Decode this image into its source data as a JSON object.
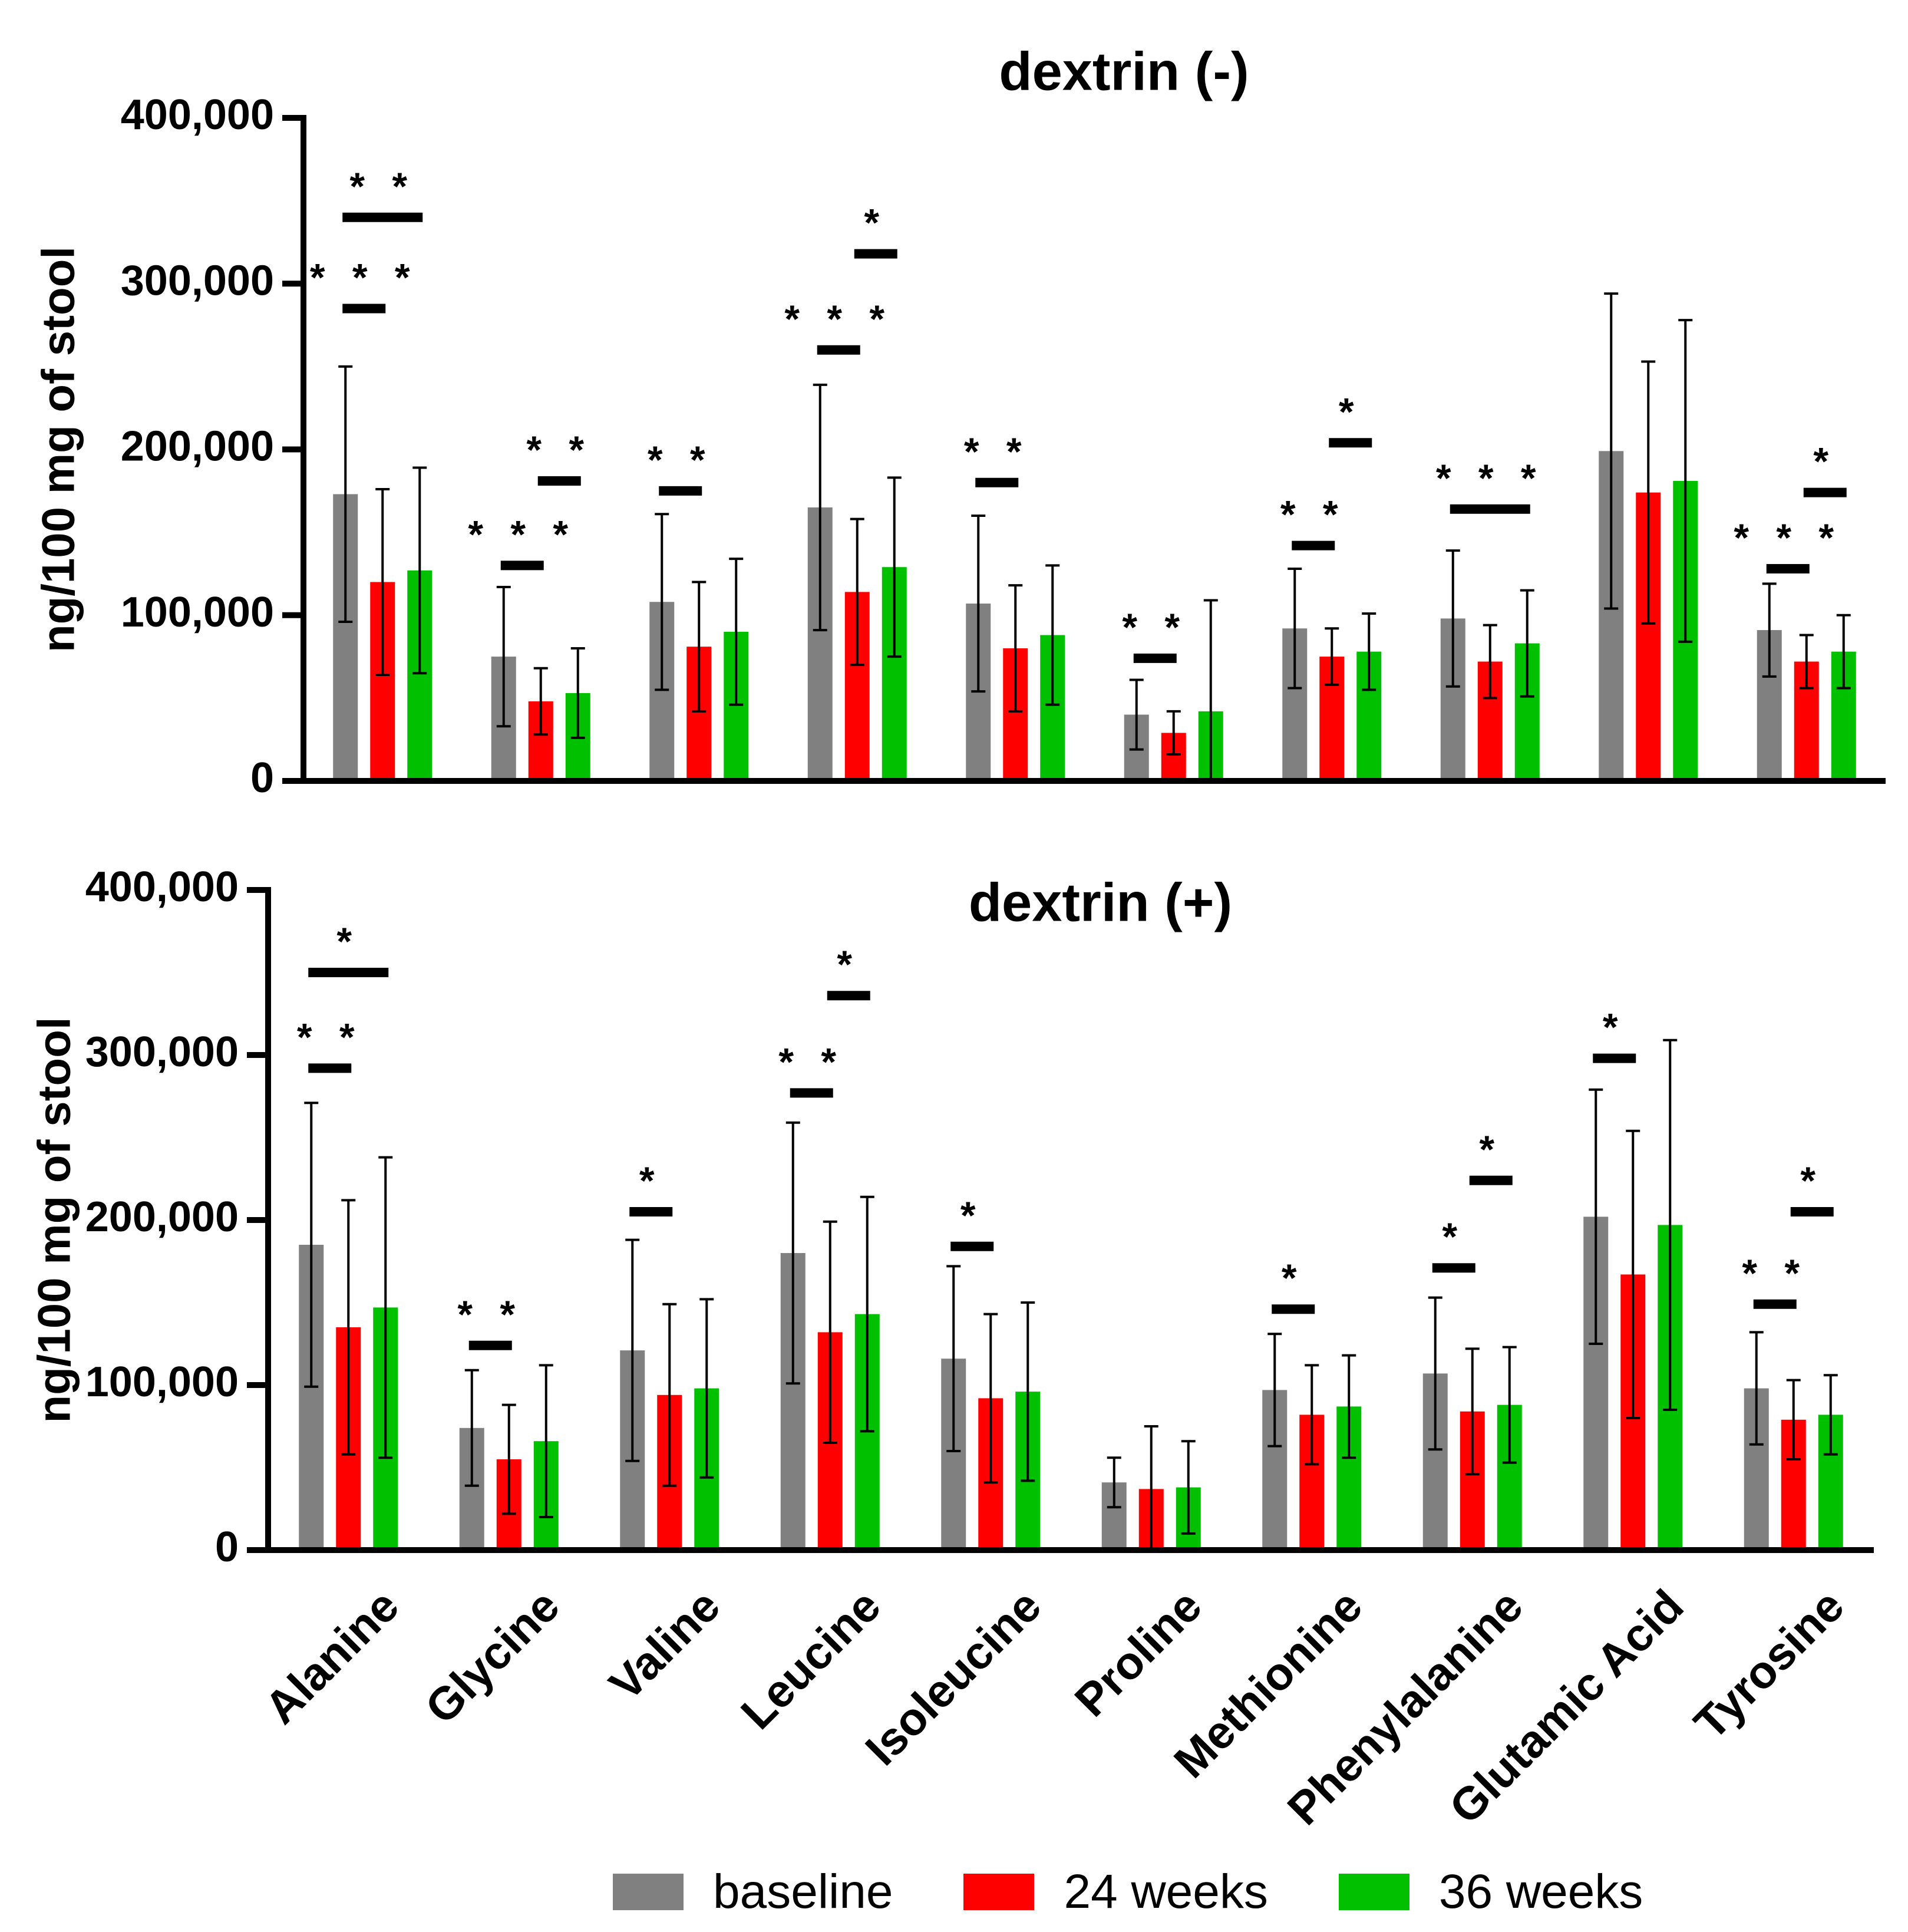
{
  "colors": {
    "baseline": "#808080",
    "week24": "#ff0000",
    "week36": "#00c000",
    "axis": "#000000"
  },
  "legend": {
    "baseline": "baseline",
    "week24": "24 weeks",
    "week36": "36 weeks"
  },
  "chart_data": [
    {
      "type": "bar",
      "title": "dextrin (-)",
      "ylabel": "ng/100 mg of stool",
      "xlabel": "",
      "ylim": [
        0,
        400000
      ],
      "yticks": [
        "0",
        "100,000",
        "200,000",
        "300,000",
        "400,000"
      ],
      "ytick_values": [
        0,
        100000,
        200000,
        300000,
        400000
      ],
      "categories": [
        "Alanine",
        "Glycine",
        "Valine",
        "Leucine",
        "Isoleucine",
        "Proline",
        "Methionine",
        "Phenylalanine",
        "Glutamic Acid",
        "Tyrosine"
      ],
      "series": [
        {
          "name": "baseline",
          "values": [
            173000,
            75000,
            108000,
            165000,
            107000,
            40000,
            92000,
            98000,
            199000,
            91000
          ],
          "errors": [
            77000,
            42000,
            53000,
            74000,
            53000,
            21000,
            36000,
            41000,
            95000,
            28000
          ]
        },
        {
          "name": "24 weeks",
          "values": [
            120000,
            48000,
            81000,
            114000,
            80000,
            29000,
            75000,
            72000,
            174000,
            72000
          ],
          "errors": [
            56000,
            20000,
            39000,
            44000,
            38000,
            13000,
            17000,
            22000,
            79000,
            16000
          ]
        },
        {
          "name": "36 weeks",
          "values": [
            127000,
            53000,
            90000,
            129000,
            88000,
            42000,
            78000,
            83000,
            181000,
            78000
          ],
          "errors": [
            62000,
            27000,
            44000,
            54000,
            42000,
            67000,
            23000,
            32000,
            97000,
            22000
          ]
        }
      ],
      "significance": [
        {
          "category": 0,
          "from": 0,
          "to": 1,
          "label": "* * *",
          "y": 285000
        },
        {
          "category": 0,
          "from": 0,
          "to": 2,
          "label": "* *",
          "y": 340000
        },
        {
          "category": 1,
          "from": 0,
          "to": 1,
          "label": "* * *",
          "y": 130000
        },
        {
          "category": 1,
          "from": 1,
          "to": 2,
          "label": "* *",
          "y": 181000
        },
        {
          "category": 2,
          "from": 0,
          "to": 1,
          "label": "* *",
          "y": 175000
        },
        {
          "category": 3,
          "from": 0,
          "to": 1,
          "label": "* * *",
          "y": 260000
        },
        {
          "category": 3,
          "from": 1,
          "to": 2,
          "label": "*",
          "y": 318000
        },
        {
          "category": 4,
          "from": 0,
          "to": 1,
          "label": "* *",
          "y": 180000
        },
        {
          "category": 5,
          "from": 0,
          "to": 1,
          "label": "* *",
          "y": 74000
        },
        {
          "category": 6,
          "from": 0,
          "to": 1,
          "label": "* *",
          "y": 142000
        },
        {
          "category": 6,
          "from": 1,
          "to": 2,
          "label": "*",
          "y": 204000
        },
        {
          "category": 7,
          "from": 0,
          "to": 2,
          "label": "* * *",
          "y": 164000
        },
        {
          "category": 9,
          "from": 0,
          "to": 1,
          "label": "* * *",
          "y": 128000
        },
        {
          "category": 9,
          "from": 1,
          "to": 2,
          "label": "*",
          "y": 174000
        }
      ]
    },
    {
      "type": "bar",
      "title": "dextrin (+)",
      "ylabel": "ng/100 mg of stool",
      "xlabel": "",
      "ylim": [
        0,
        400000
      ],
      "yticks": [
        "0",
        "100,000",
        "200,000",
        "300,000",
        "400,000"
      ],
      "ytick_values": [
        0,
        100000,
        200000,
        300000,
        400000
      ],
      "categories": [
        "Alanine",
        "Glycine",
        "Valine",
        "Leucine",
        "Isoleucine",
        "Proline",
        "Methionine",
        "Phenylalanine",
        "Glutamic Acid",
        "Tyrosine"
      ],
      "series": [
        {
          "name": "baseline",
          "values": [
            185000,
            74000,
            121000,
            180000,
            116000,
            41000,
            97000,
            107000,
            202000,
            98000
          ],
          "errors": [
            86000,
            35000,
            67000,
            79000,
            56000,
            15000,
            34000,
            46000,
            77000,
            34000
          ]
        },
        {
          "name": "24 weeks",
          "values": [
            135000,
            55000,
            94000,
            132000,
            92000,
            37000,
            82000,
            84000,
            167000,
            79000
          ],
          "errors": [
            77000,
            33000,
            55000,
            67000,
            51000,
            38000,
            30000,
            38000,
            87000,
            24000
          ]
        },
        {
          "name": "36 weeks",
          "values": [
            147000,
            66000,
            98000,
            143000,
            96000,
            38000,
            87000,
            88000,
            197000,
            82000
          ],
          "errors": [
            91000,
            46000,
            54000,
            71000,
            54000,
            28000,
            31000,
            35000,
            112000,
            24000
          ]
        }
      ],
      "significance": [
        {
          "category": 0,
          "from": 0,
          "to": 1,
          "label": "* *",
          "y": 292000
        },
        {
          "category": 0,
          "from": 0,
          "to": 2,
          "label": "*",
          "y": 350000
        },
        {
          "category": 1,
          "from": 0,
          "to": 1,
          "label": "* *",
          "y": 124000
        },
        {
          "category": 2,
          "from": 0,
          "to": 1,
          "label": "*",
          "y": 205000
        },
        {
          "category": 3,
          "from": 0,
          "to": 1,
          "label": "* *",
          "y": 277000
        },
        {
          "category": 3,
          "from": 1,
          "to": 2,
          "label": "*",
          "y": 336000
        },
        {
          "category": 4,
          "from": 0,
          "to": 1,
          "label": "*",
          "y": 184000
        },
        {
          "category": 6,
          "from": 0,
          "to": 1,
          "label": "*",
          "y": 146000
        },
        {
          "category": 7,
          "from": 0,
          "to": 1,
          "label": "*",
          "y": 171000
        },
        {
          "category": 7,
          "from": 1,
          "to": 2,
          "label": "*",
          "y": 224000
        },
        {
          "category": 8,
          "from": 0,
          "to": 1,
          "label": "*",
          "y": 298000
        },
        {
          "category": 9,
          "from": 0,
          "to": 1,
          "label": "* *",
          "y": 149000
        },
        {
          "category": 9,
          "from": 1,
          "to": 2,
          "label": "*",
          "y": 205000
        }
      ]
    }
  ]
}
